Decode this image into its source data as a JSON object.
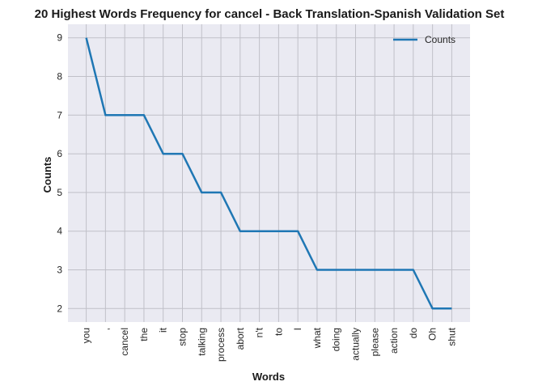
{
  "chart_data": {
    "type": "line",
    "title": "20 Highest Words Frequency for cancel - Back Translation-Spanish Validation Set",
    "xlabel": "Words",
    "ylabel": "Counts",
    "categories": [
      "you",
      ",",
      "cancel",
      "the",
      "it",
      "stop",
      "talking",
      "process",
      "abort",
      "n't",
      "to",
      "I",
      "what",
      "doing",
      "actually",
      "please",
      "action",
      "do",
      "Oh",
      "shut"
    ],
    "series": [
      {
        "name": "Counts",
        "values": [
          9,
          7,
          7,
          7,
          6,
          6,
          5,
          5,
          4,
          4,
          4,
          4,
          3,
          3,
          3,
          3,
          3,
          3,
          2,
          2
        ]
      }
    ],
    "yticks": [
      2,
      3,
      4,
      5,
      6,
      7,
      8,
      9
    ],
    "ylim": [
      1.65,
      9.35
    ],
    "grid": true,
    "legend_position": "top-right",
    "colors": {
      "line": "#1f77b4",
      "plot_background": "#eaeaf2",
      "grid": "#c0c0c8"
    }
  }
}
